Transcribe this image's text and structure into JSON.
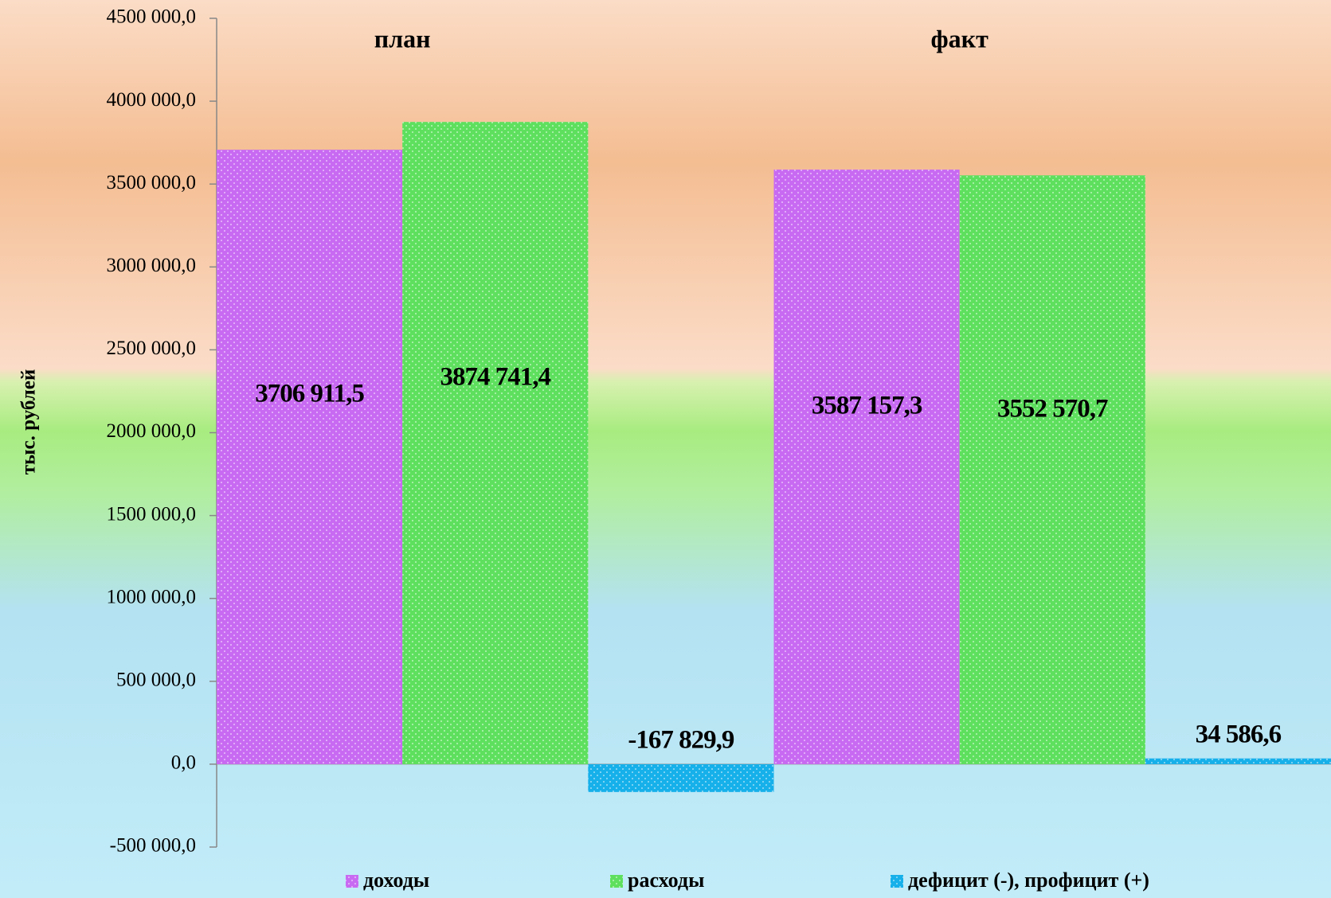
{
  "chart_data": {
    "type": "bar",
    "categories": [
      "план",
      "факт"
    ],
    "y_label": "тыс. рублей",
    "series": [
      {
        "name": "доходы",
        "color": "#c86af2",
        "values": [
          3706911.5,
          3587157.3
        ],
        "value_labels": [
          "3706 911,5",
          "3587 157,3"
        ]
      },
      {
        "name": "расходы",
        "color": "#5ee05e",
        "values": [
          3874741.4,
          3552570.7
        ],
        "value_labels": [
          "3874 741,4",
          "3552 570,7"
        ]
      },
      {
        "name": "дефицит (-), профицит (+)",
        "color": "#16b0ea",
        "values": [
          -167829.9,
          34586.6
        ],
        "value_labels": [
          "-167 829,9",
          "34 586,6"
        ]
      }
    ],
    "ylim": [
      -500000,
      4500000
    ],
    "yticks": [
      {
        "value": -500000,
        "label": "-500 000,0"
      },
      {
        "value": 0,
        "label": "0,0"
      },
      {
        "value": 500000,
        "label": "500 000,0"
      },
      {
        "value": 1000000,
        "label": "1000 000,0"
      },
      {
        "value": 1500000,
        "label": "1500 000,0"
      },
      {
        "value": 2000000,
        "label": "2000 000,0"
      },
      {
        "value": 2500000,
        "label": "2500 000,0"
      },
      {
        "value": 3000000,
        "label": "3000 000,0"
      },
      {
        "value": 3500000,
        "label": "3500 000,0"
      },
      {
        "value": 4000000,
        "label": "4000 000,0"
      },
      {
        "value": 4500000,
        "label": "4500 000,0"
      }
    ],
    "legend": "bottom"
  }
}
